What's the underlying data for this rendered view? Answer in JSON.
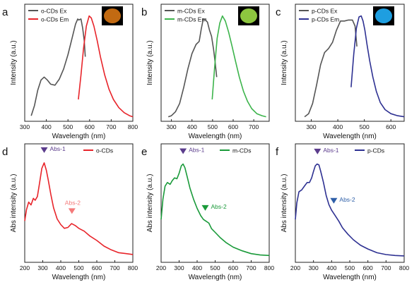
{
  "figure": {
    "panels": [
      {
        "letter": "a",
        "xlabel": "Wavelength (nm)",
        "ylabel": "Intensity (a.u.)",
        "x_ticks": [
          "300",
          "400",
          "500",
          "600",
          "700",
          "800"
        ],
        "legend": [
          {
            "label": "o-CDs Ex",
            "color": "#555555"
          },
          {
            "label": "o-CDs Em",
            "color": "#e8242a"
          }
        ],
        "inset_color": "#c26a12",
        "annotations": []
      },
      {
        "letter": "b",
        "xlabel": "Wavelength (nm)",
        "ylabel": "Intensity (a.u.)",
        "x_ticks": [
          "300",
          "400",
          "500",
          "600",
          "700"
        ],
        "legend": [
          {
            "label": "m-CDs Ex",
            "color": "#555555"
          },
          {
            "label": "m-CDs Em",
            "color": "#3cb44b"
          }
        ],
        "inset_color": "#8dc63f",
        "annotations": []
      },
      {
        "letter": "c",
        "xlabel": "Wavelength (nm)",
        "ylabel": "Intensity (a.u.)",
        "x_ticks": [
          "300",
          "400",
          "500",
          "600"
        ],
        "legend": [
          {
            "label": "p-CDs Ex",
            "color": "#555555"
          },
          {
            "label": "p-CDs Em",
            "color": "#2e3192"
          }
        ],
        "inset_color": "#1e9ee0",
        "annotations": []
      },
      {
        "letter": "d",
        "xlabel": "Wavelength (nm)",
        "ylabel": "Abs intensity (a.u.)",
        "x_ticks": [
          "200",
          "300",
          "400",
          "500",
          "600",
          "700",
          "800"
        ],
        "legend": [
          {
            "label": "o-CDs",
            "color": "#e8242a"
          }
        ],
        "annotations": [
          {
            "text": "Abs-1",
            "color": "#5b3c8c"
          },
          {
            "text": "Abs-2",
            "color": "#f47a7a"
          }
        ]
      },
      {
        "letter": "e",
        "xlabel": "Wavelength (nm)",
        "ylabel": "Abs intensity (a.u.)",
        "x_ticks": [
          "200",
          "300",
          "400",
          "500",
          "600",
          "700",
          "800"
        ],
        "legend": [
          {
            "label": "m-CDs",
            "color": "#1a9a3a"
          }
        ],
        "annotations": [
          {
            "text": "Abs-1",
            "color": "#5b3c8c"
          },
          {
            "text": "Abs-2",
            "color": "#1a9a3a"
          }
        ]
      },
      {
        "letter": "f",
        "xlabel": "Wavelength (nm)",
        "ylabel": "Abs intensity (a.u.)",
        "x_ticks": [
          "200",
          "300",
          "400",
          "500",
          "600",
          "700",
          "800"
        ],
        "legend": [
          {
            "label": "p-CDs",
            "color": "#2e3192"
          }
        ],
        "annotations": [
          {
            "text": "Abs-1",
            "color": "#5b3c8c"
          },
          {
            "text": "Abs-2",
            "color": "#2e5fa8"
          }
        ]
      }
    ]
  },
  "chart_data": [
    {
      "type": "line",
      "panel": "a",
      "xlim": [
        300,
        800
      ],
      "series": [
        {
          "name": "o-CDs Ex",
          "color": "#555555",
          "x": [
            330,
            345,
            360,
            375,
            390,
            405,
            420,
            440,
            460,
            480,
            500,
            520,
            535,
            545,
            550,
            560,
            568,
            575,
            580
          ],
          "y": [
            0.02,
            0.12,
            0.27,
            0.37,
            0.4,
            0.37,
            0.33,
            0.32,
            0.38,
            0.48,
            0.62,
            0.79,
            0.92,
            0.97,
            0.96,
            0.97,
            0.88,
            0.76,
            0.6
          ]
        },
        {
          "name": "o-CDs Em",
          "color": "#e8242a",
          "x": [
            548,
            560,
            572,
            585,
            598,
            608,
            620,
            635,
            650,
            670,
            690,
            710,
            735,
            760,
            785,
            800
          ],
          "y": [
            0.18,
            0.42,
            0.68,
            0.9,
            1.0,
            0.98,
            0.9,
            0.76,
            0.6,
            0.42,
            0.28,
            0.18,
            0.1,
            0.05,
            0.02,
            0.01
          ]
        }
      ]
    },
    {
      "type": "line",
      "panel": "b",
      "xlim": [
        250,
        775
      ],
      "series": [
        {
          "name": "m-CDs Ex",
          "color": "#555555",
          "x": [
            285,
            300,
            320,
            340,
            360,
            380,
            400,
            420,
            435,
            445,
            455,
            465,
            475,
            485,
            495,
            505,
            512,
            520
          ],
          "y": [
            0.01,
            0.02,
            0.06,
            0.14,
            0.3,
            0.48,
            0.63,
            0.72,
            0.75,
            0.87,
            0.97,
            0.96,
            0.94,
            0.86,
            0.8,
            0.67,
            0.55,
            0.4
          ]
        },
        {
          "name": "m-CDs Em",
          "color": "#3cb44b",
          "x": [
            498,
            510,
            522,
            535,
            548,
            562,
            578,
            595,
            612,
            630,
            650,
            670,
            690,
            715,
            740,
            760
          ],
          "y": [
            0.18,
            0.5,
            0.78,
            0.93,
            1.0,
            0.95,
            0.84,
            0.7,
            0.55,
            0.4,
            0.26,
            0.16,
            0.09,
            0.04,
            0.02,
            0.01
          ]
        }
      ]
    },
    {
      "type": "line",
      "panel": "c",
      "xlim": [
        240,
        650
      ],
      "series": [
        {
          "name": "p-CDs Ex",
          "color": "#555555",
          "x": [
            275,
            290,
            305,
            320,
            335,
            350,
            365,
            380,
            395,
            410,
            425,
            440,
            455,
            465,
            472
          ],
          "y": [
            0.01,
            0.04,
            0.14,
            0.32,
            0.52,
            0.64,
            0.68,
            0.74,
            0.86,
            0.95,
            0.95,
            0.96,
            0.96,
            0.9,
            0.7
          ]
        },
        {
          "name": "p-CDs Em",
          "color": "#2e3192",
          "x": [
            450,
            460,
            470,
            480,
            488,
            495,
            502,
            510,
            520,
            532,
            545,
            560,
            578,
            600,
            625,
            650
          ],
          "y": [
            0.3,
            0.62,
            0.88,
            0.99,
            1.0,
            0.95,
            0.86,
            0.72,
            0.56,
            0.4,
            0.26,
            0.15,
            0.08,
            0.04,
            0.02,
            0.01
          ]
        }
      ]
    },
    {
      "type": "line",
      "panel": "d",
      "xlim": [
        200,
        800
      ],
      "series": [
        {
          "name": "o-CDs",
          "color": "#e8242a",
          "x": [
            200,
            210,
            222,
            235,
            248,
            258,
            270,
            282,
            295,
            308,
            320,
            330,
            345,
            360,
            380,
            400,
            420,
            440,
            460,
            480,
            500,
            530,
            560,
            600,
            640,
            680,
            720,
            760,
            800
          ],
          "y": [
            0.38,
            0.5,
            0.58,
            0.55,
            0.62,
            0.6,
            0.64,
            0.78,
            0.94,
            1.0,
            0.92,
            0.82,
            0.66,
            0.52,
            0.4,
            0.34,
            0.3,
            0.31,
            0.35,
            0.33,
            0.3,
            0.27,
            0.22,
            0.17,
            0.11,
            0.07,
            0.04,
            0.03,
            0.02
          ]
        }
      ],
      "annotations": [
        {
          "text": "Abs-1",
          "x": 308
        },
        {
          "text": "Abs-2",
          "x": 462
        }
      ]
    },
    {
      "type": "line",
      "panel": "e",
      "xlim": [
        200,
        800
      ],
      "series": [
        {
          "name": "m-CDs",
          "color": "#1a9a3a",
          "x": [
            200,
            210,
            222,
            235,
            250,
            262,
            275,
            288,
            300,
            312,
            322,
            332,
            345,
            360,
            380,
            400,
            420,
            435,
            450,
            465,
            480,
            500,
            530,
            560,
            600,
            650,
            700,
            750,
            800
          ],
          "y": [
            0.4,
            0.62,
            0.76,
            0.8,
            0.78,
            0.82,
            0.85,
            0.84,
            0.9,
            0.98,
            1.0,
            0.96,
            0.86,
            0.74,
            0.62,
            0.52,
            0.44,
            0.4,
            0.38,
            0.36,
            0.3,
            0.26,
            0.2,
            0.15,
            0.1,
            0.06,
            0.03,
            0.015,
            0.01
          ]
        }
      ],
      "annotations": [
        {
          "text": "Abs-1",
          "x": 322
        },
        {
          "text": "Abs-2",
          "x": 445
        }
      ]
    },
    {
      "type": "line",
      "panel": "f",
      "xlim": [
        200,
        800
      ],
      "series": [
        {
          "name": "p-CDs",
          "color": "#2e3192",
          "x": [
            200,
            208,
            220,
            235,
            250,
            265,
            278,
            290,
            300,
            310,
            320,
            330,
            340,
            355,
            370,
            385,
            400,
            420,
            440,
            460,
            490,
            520,
            560,
            600,
            650,
            700,
            750,
            800
          ],
          "y": [
            0.4,
            0.58,
            0.7,
            0.72,
            0.76,
            0.8,
            0.8,
            0.85,
            0.92,
            0.98,
            1.0,
            0.99,
            0.92,
            0.8,
            0.66,
            0.56,
            0.5,
            0.44,
            0.38,
            0.31,
            0.24,
            0.18,
            0.12,
            0.08,
            0.04,
            0.02,
            0.01,
            0.005
          ]
        }
      ],
      "annotations": [
        {
          "text": "Abs-1",
          "x": 322
        },
        {
          "text": "Abs-2",
          "x": 412
        }
      ]
    }
  ]
}
